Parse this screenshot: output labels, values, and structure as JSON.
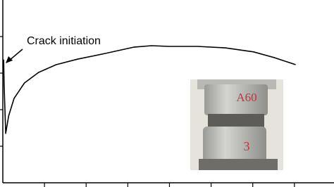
{
  "chart_data": {
    "type": "line",
    "annotation": "Crack initiation",
    "x": [
      0.02,
      0.03,
      0.07,
      0.14,
      0.27,
      0.52,
      0.86,
      1.28,
      1.79,
      2.47,
      3.14,
      3.57,
      3.99,
      4.67,
      5.34,
      6.02,
      6.53,
      7.03
    ],
    "series": [
      {
        "color": "#000000",
        "values": [
          3.37,
          2.69,
          1.35,
          1.83,
          2.31,
          2.73,
          3.02,
          3.23,
          3.38,
          3.54,
          3.71,
          3.75,
          3.73,
          3.73,
          3.69,
          3.58,
          3.42,
          3.23
        ]
      }
    ],
    "xlim": [
      0,
      7.95
    ],
    "ylim": [
      0,
      5
    ],
    "xticks": [
      1,
      2,
      3,
      4,
      5,
      6,
      7
    ],
    "yticks": [
      1,
      2,
      3,
      4
    ],
    "inset_labels": [
      "A60",
      "3"
    ]
  }
}
